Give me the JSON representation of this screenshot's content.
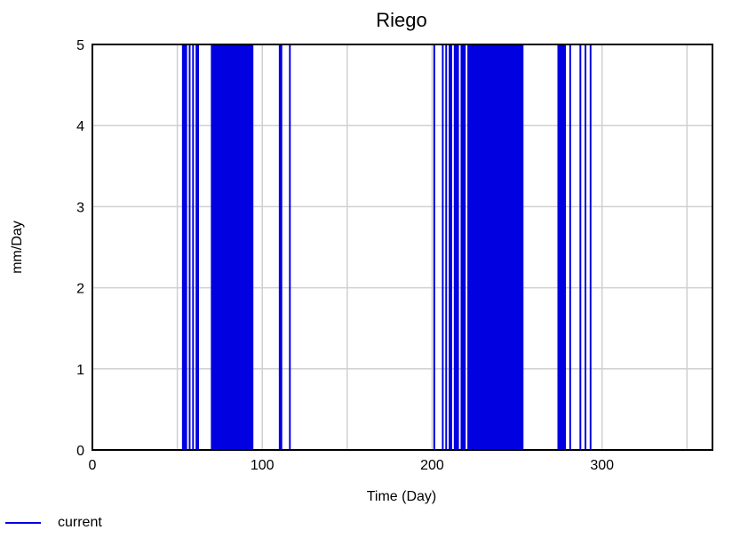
{
  "chart_data": {
    "type": "line",
    "title": "Riego",
    "xlabel": "Time (Day)",
    "ylabel": "mm/Day",
    "xlim": [
      0,
      365
    ],
    "ylim": [
      0,
      5
    ],
    "x_ticks": [
      0,
      100,
      200,
      300
    ],
    "y_ticks": [
      0,
      1,
      2,
      3,
      4,
      5
    ],
    "grid": true,
    "legend_position": "bottom-left",
    "series": [
      {
        "name": "current",
        "color": "#0000e0",
        "pulse_width_days": 0.5,
        "pulse_value": 5,
        "pulse_days": [
          53,
          54,
          55,
          57,
          59,
          61,
          62,
          70,
          71,
          72,
          73,
          74,
          75,
          76,
          77,
          78,
          79,
          80,
          81,
          82,
          83,
          84,
          85,
          86,
          87,
          88,
          89,
          90,
          91,
          92,
          93,
          94,
          110,
          111,
          116,
          201,
          206,
          208,
          210,
          211,
          213,
          214,
          215,
          217,
          218,
          219,
          221,
          222,
          223,
          224,
          225,
          226,
          227,
          228,
          229,
          230,
          231,
          232,
          233,
          234,
          235,
          236,
          237,
          238,
          239,
          240,
          241,
          242,
          243,
          244,
          245,
          246,
          247,
          248,
          249,
          250,
          251,
          252,
          253,
          274,
          275,
          276,
          277,
          278,
          281,
          287,
          290,
          293
        ]
      }
    ]
  }
}
